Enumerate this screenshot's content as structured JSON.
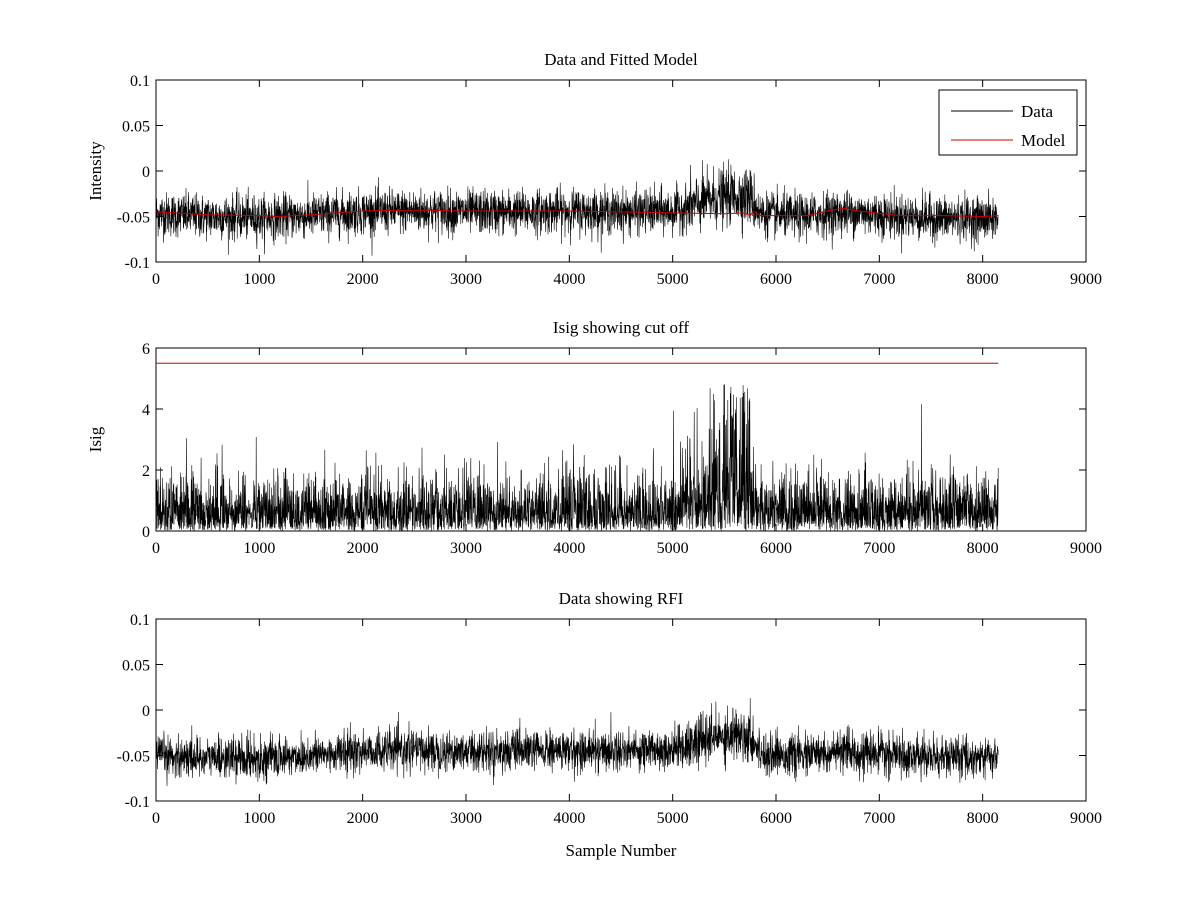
{
  "chart_data": [
    {
      "type": "line",
      "title": "Data and Fitted Model",
      "xlabel": "",
      "ylabel": "Intensity",
      "xlim": [
        0,
        9000
      ],
      "ylim": [
        -0.1,
        0.1
      ],
      "xticks": [
        0,
        1000,
        2000,
        3000,
        4000,
        5000,
        6000,
        7000,
        8000,
        9000
      ],
      "xtick_labels": [
        "0",
        "1000",
        "2000",
        "3000",
        "4000",
        "5000",
        "6000",
        "7000",
        "8000",
        "9000"
      ],
      "yticks": [
        -0.1,
        -0.05,
        0,
        0.05,
        0.1
      ],
      "ytick_labels": [
        "-0.1",
        "-0.05",
        "0",
        "0.05",
        "0.1"
      ],
      "legend": {
        "position": "top-right",
        "entries": [
          "Data",
          "Model"
        ]
      },
      "series": [
        {
          "name": "Data",
          "color": "#000000",
          "kind": "noisy",
          "x_range": [
            0,
            8150
          ],
          "baseline": [
            [
              0,
              -0.047
            ],
            [
              500,
              -0.05
            ],
            [
              1000,
              -0.051
            ],
            [
              1500,
              -0.049
            ],
            [
              2000,
              -0.045
            ],
            [
              2500,
              -0.044
            ],
            [
              3000,
              -0.045
            ],
            [
              3500,
              -0.045
            ],
            [
              4000,
              -0.044
            ],
            [
              4500,
              -0.045
            ],
            [
              5000,
              -0.044
            ],
            [
              5200,
              -0.038
            ],
            [
              5400,
              -0.03
            ],
            [
              5600,
              -0.027
            ],
            [
              5750,
              -0.028
            ],
            [
              5850,
              -0.047
            ],
            [
              6200,
              -0.05
            ],
            [
              6600,
              -0.046
            ],
            [
              6800,
              -0.046
            ],
            [
              7200,
              -0.05
            ],
            [
              7600,
              -0.052
            ],
            [
              8150,
              -0.052
            ]
          ],
          "noise": 0.012
        },
        {
          "name": "Model",
          "color": "#cc0000",
          "values": [
            [
              0,
              -0.045
            ],
            [
              500,
              -0.048
            ],
            [
              1000,
              -0.049
            ],
            [
              1200,
              -0.05
            ],
            [
              1500,
              -0.048
            ],
            [
              2000,
              -0.044
            ],
            [
              2500,
              -0.043
            ],
            [
              3000,
              -0.044
            ],
            [
              3500,
              -0.044
            ],
            [
              4000,
              -0.044
            ],
            [
              4500,
              -0.045
            ],
            [
              5000,
              -0.046
            ],
            [
              5500,
              -0.047
            ],
            [
              5700,
              -0.046
            ],
            [
              5750,
              -0.049
            ],
            [
              5780,
              -0.044
            ],
            [
              5850,
              -0.049
            ],
            [
              6000,
              -0.049
            ],
            [
              6300,
              -0.049
            ],
            [
              6500,
              -0.044
            ],
            [
              6650,
              -0.041
            ],
            [
              6800,
              -0.044
            ],
            [
              7200,
              -0.049
            ],
            [
              7600,
              -0.049
            ],
            [
              8000,
              -0.05
            ],
            [
              8150,
              -0.049
            ]
          ]
        }
      ]
    },
    {
      "type": "line",
      "title": "Isig showing cut off",
      "xlabel": "",
      "ylabel": "Isig",
      "xlim": [
        0,
        9000
      ],
      "ylim": [
        0,
        6
      ],
      "xticks": [
        0,
        1000,
        2000,
        3000,
        4000,
        5000,
        6000,
        7000,
        8000,
        9000
      ],
      "xtick_labels": [
        "0",
        "1000",
        "2000",
        "3000",
        "4000",
        "5000",
        "6000",
        "7000",
        "8000",
        "9000"
      ],
      "yticks": [
        0,
        2,
        4,
        6
      ],
      "ytick_labels": [
        "0",
        "2",
        "4",
        "6"
      ],
      "series": [
        {
          "name": "Isig",
          "color": "#000000",
          "kind": "abs-noise",
          "x_range": [
            0,
            8150
          ],
          "scale": [
            [
              0,
              0.85
            ],
            [
              5000,
              0.9
            ],
            [
              5200,
              1.4
            ],
            [
              5500,
              1.9
            ],
            [
              5700,
              2.1
            ],
            [
              5780,
              1.3
            ],
            [
              5850,
              0.9
            ],
            [
              8150,
              0.85
            ]
          ]
        },
        {
          "name": "Cut off",
          "color": "#cc0000",
          "values": [
            [
              0,
              5.5
            ],
            [
              8150,
              5.5
            ]
          ]
        }
      ]
    },
    {
      "type": "line",
      "title": "Data showing RFI",
      "xlabel": "Sample Number",
      "ylabel": "",
      "xlim": [
        0,
        9000
      ],
      "ylim": [
        -0.1,
        0.1
      ],
      "xticks": [
        0,
        1000,
        2000,
        3000,
        4000,
        5000,
        6000,
        7000,
        8000,
        9000
      ],
      "xtick_labels": [
        "0",
        "1000",
        "2000",
        "3000",
        "4000",
        "5000",
        "6000",
        "7000",
        "8000",
        "9000"
      ],
      "yticks": [
        -0.1,
        -0.05,
        0,
        0.05,
        0.1
      ],
      "ytick_labels": [
        "-0.1",
        "-0.05",
        "0",
        "0.05",
        "0.1"
      ],
      "series": [
        {
          "name": "Data",
          "color": "#000000",
          "kind": "noisy",
          "x_range": [
            0,
            8150
          ],
          "baseline": [
            [
              0,
              -0.05
            ],
            [
              500,
              -0.052
            ],
            [
              1000,
              -0.053
            ],
            [
              1500,
              -0.05
            ],
            [
              2000,
              -0.045
            ],
            [
              2500,
              -0.044
            ],
            [
              3000,
              -0.045
            ],
            [
              3500,
              -0.045
            ],
            [
              4000,
              -0.045
            ],
            [
              4500,
              -0.044
            ],
            [
              5000,
              -0.043
            ],
            [
              5200,
              -0.037
            ],
            [
              5400,
              -0.03
            ],
            [
              5600,
              -0.026
            ],
            [
              5750,
              -0.028
            ],
            [
              5850,
              -0.047
            ],
            [
              6200,
              -0.05
            ],
            [
              6600,
              -0.047
            ],
            [
              6800,
              -0.047
            ],
            [
              7200,
              -0.05
            ],
            [
              7600,
              -0.052
            ],
            [
              8150,
              -0.052
            ]
          ],
          "noise": 0.011
        }
      ]
    }
  ]
}
